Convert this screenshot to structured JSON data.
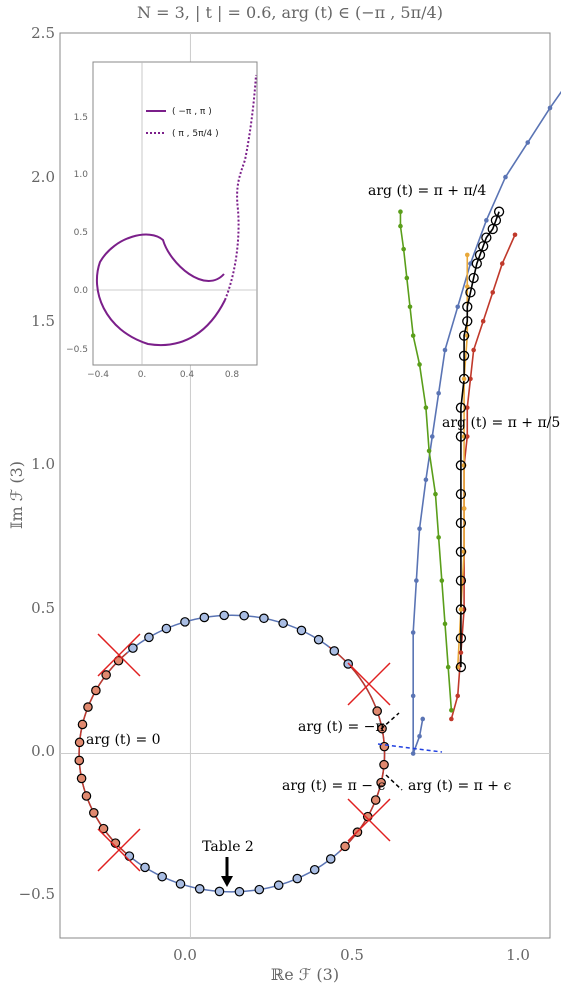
{
  "chart_data": {
    "type": "line",
    "title": "N = 3,  | t | = 0.6,  arg (t) ∈ (−π , 5π/4)",
    "xlabel": "ℝe ℱ (3)",
    "ylabel": "𝕀m ℱ (3)",
    "xlim": [
      -0.41,
      1.13
    ],
    "ylim": [
      -0.64,
      2.5
    ],
    "xticks": [
      0.0,
      0.5,
      1.0
    ],
    "yticks": [
      -0.5,
      0.0,
      0.5,
      1.0,
      1.5,
      2.0,
      2.5
    ],
    "tick_labels": {
      "x": [
        "0.0",
        "0.5",
        "1.0"
      ],
      "y": [
        "−0.5",
        "0.0",
        "0.5",
        "1.0",
        "1.5",
        "2.0",
        "2.5"
      ]
    },
    "circle": {
      "cx": 0.13,
      "cy": 0.0,
      "r": 0.48
    },
    "series": [
      {
        "color": "#5a74b4",
        "x": [
          0.73,
          0.72,
          0.7,
          0.7,
          0.7,
          0.71,
          0.72,
          0.74,
          0.76,
          0.78,
          0.8,
          0.84,
          0.88,
          0.93,
          0.99,
          1.06,
          1.13,
          1.2
        ],
        "y": [
          0.12,
          0.06,
          0.0,
          0.2,
          0.42,
          0.6,
          0.78,
          0.95,
          1.1,
          1.25,
          1.4,
          1.55,
          1.7,
          1.85,
          2.0,
          2.12,
          2.24,
          2.35
        ]
      },
      {
        "color": "#5a9e1a",
        "x": [
          0.82,
          0.81,
          0.8,
          0.79,
          0.78,
          0.77,
          0.75,
          0.74,
          0.72,
          0.7,
          0.69,
          0.68,
          0.67,
          0.66,
          0.66
        ],
        "y": [
          0.15,
          0.3,
          0.45,
          0.6,
          0.75,
          0.9,
          1.05,
          1.2,
          1.35,
          1.45,
          1.55,
          1.65,
          1.75,
          1.83,
          1.88
        ]
      },
      {
        "color": "#c0392b",
        "x": [
          0.82,
          0.84,
          0.85,
          0.86,
          0.86,
          0.86,
          0.86,
          0.87,
          0.87,
          0.88,
          0.89,
          0.92,
          0.95,
          0.98,
          1.02
        ],
        "y": [
          0.12,
          0.2,
          0.35,
          0.5,
          0.7,
          0.85,
          1.0,
          1.1,
          1.2,
          1.3,
          1.4,
          1.5,
          1.6,
          1.7,
          1.8
        ]
      },
      {
        "color": "#e8a83a",
        "x": [
          0.84,
          0.85,
          0.86,
          0.86,
          0.86,
          0.86,
          0.86,
          0.87,
          0.87,
          0.87
        ],
        "y": [
          0.3,
          0.5,
          0.7,
          0.85,
          1.0,
          1.1,
          1.3,
          1.45,
          1.62,
          1.73
        ]
      },
      {
        "color": "#000000",
        "x": [
          0.85,
          0.85,
          0.85,
          0.85,
          0.85,
          0.85,
          0.85,
          0.85,
          0.85,
          0.85,
          0.86,
          0.86,
          0.86,
          0.87,
          0.87,
          0.88,
          0.89,
          0.9,
          0.91,
          0.92,
          0.93,
          0.95,
          0.96,
          0.97
        ],
        "y": [
          0.3,
          0.4,
          0.5,
          0.6,
          0.7,
          0.8,
          0.9,
          1.0,
          1.1,
          1.2,
          1.3,
          1.38,
          1.45,
          1.5,
          1.55,
          1.6,
          1.65,
          1.7,
          1.73,
          1.76,
          1.79,
          1.82,
          1.85,
          1.88
        ]
      }
    ],
    "annotations": {
      "arg_zero": "arg (t) = 0",
      "arg_neg_pi": "arg (t) = −π",
      "arg_pi_minus_eps": "arg (t) = π − ϵ",
      "arg_pi_plus_eps": "arg (t) = π + ϵ",
      "arg_pi_plus_pi4": "arg (t) = π + π/4",
      "arg_pi_plus_pi5": "arg (t) = π + π/5",
      "table_label": "Table  2"
    },
    "inset": {
      "xlim": [
        -0.4,
        1.0
      ],
      "ylim": [
        -0.6,
        2.0
      ],
      "xticks_labels": [
        "−0.4",
        "0.",
        "0.4",
        "0.8"
      ],
      "yticks_labels": [
        "−0.5",
        "0.0",
        "0.5",
        "1.0",
        "1.5"
      ],
      "legend": [
        {
          "label": "( −π , π )",
          "color": "#7b1f8a",
          "dashed": false
        },
        {
          "label": "( π , 5π/4 )",
          "color": "#7b1f8a",
          "dashed": true
        }
      ]
    }
  }
}
